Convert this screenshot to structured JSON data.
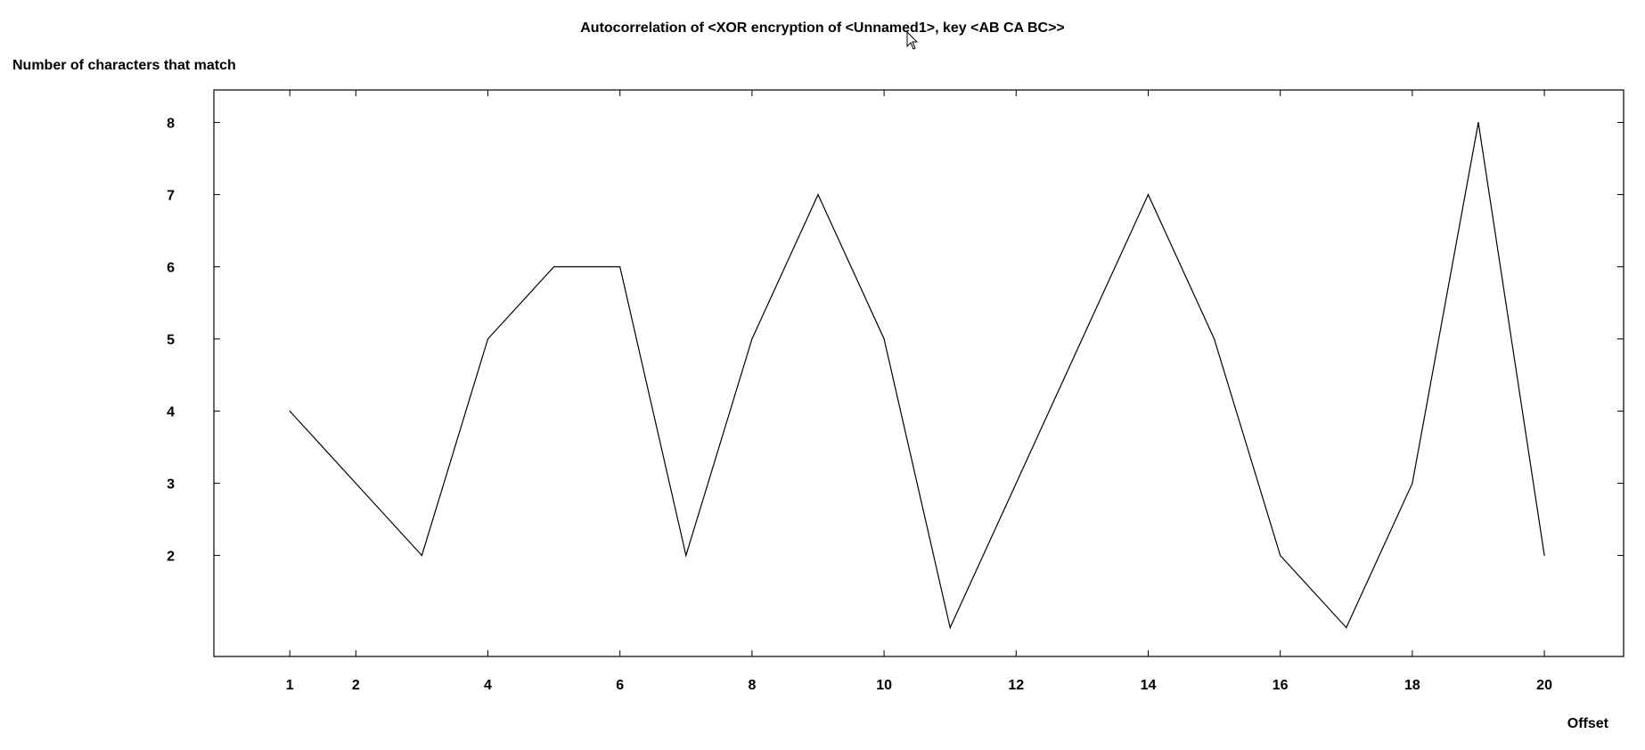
{
  "chart_data": {
    "type": "line",
    "title": "Autocorrelation of <XOR encryption of <Unnamed1>, key <AB CA BC>>",
    "ylabel": "Number of characters that match",
    "xlabel": "Offset",
    "x": [
      1,
      2,
      3,
      4,
      5,
      6,
      7,
      8,
      9,
      10,
      11,
      12,
      13,
      14,
      15,
      16,
      17,
      18,
      19,
      20
    ],
    "series": [
      {
        "values": [
          4,
          3,
          2,
          5,
          6,
          6,
          2,
          5,
          7,
          5,
          1,
          3,
          5,
          7,
          5,
          2,
          1,
          3,
          8,
          2
        ]
      }
    ],
    "x_ticks": [
      1,
      2,
      4,
      6,
      8,
      10,
      12,
      14,
      16,
      18,
      20
    ],
    "y_ticks": [
      2,
      3,
      4,
      5,
      6,
      7,
      8
    ],
    "xlim": [
      -0.15,
      21.2
    ],
    "ylim": [
      0.6,
      8.45
    ],
    "grid": false,
    "line_color": "#000000"
  }
}
